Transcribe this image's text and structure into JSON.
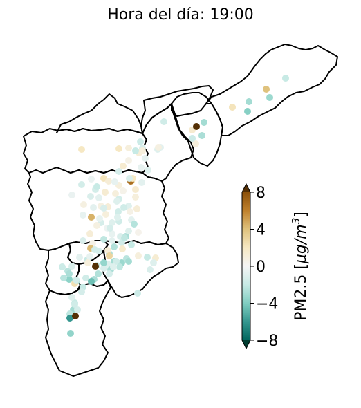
{
  "title": "Hora del día: 19:00",
  "colorbar": {
    "label": "PM2.5 [μg/m³]",
    "label_parts": [
      "PM2.5 [",
      "μg/m",
      "3",
      "]"
    ],
    "min": -8,
    "max": 8,
    "ticks": [
      8,
      4,
      0,
      -4,
      -8
    ],
    "tick_labels": [
      "8",
      "4",
      "0",
      "−4",
      "−8"
    ],
    "extend": "both",
    "colormap": "BrBG_r",
    "colors": [
      "#003c30",
      "#01665e",
      "#35978f",
      "#80cdc1",
      "#c7eae5",
      "#f5f5f5",
      "#f6e8c3",
      "#dfc27d",
      "#bf812d",
      "#8c510a",
      "#543005"
    ]
  },
  "map_data": {
    "regions": [
      "region-1",
      "region-2",
      "region-3",
      "region-4",
      "region-5",
      "region-6",
      "region-7",
      "region-8",
      "region-9",
      "region-10",
      "region-11"
    ],
    "points": [
      {
        "id": "p1",
        "value": 0.8
      },
      {
        "id": "p2",
        "value": 0.5
      },
      {
        "id": "p3",
        "value": -0.6
      },
      {
        "id": "p4",
        "value": -0.8
      },
      {
        "id": "p5",
        "value": 1.2
      },
      {
        "id": "p6",
        "value": 0.4
      },
      {
        "id": "p7",
        "value": -1.2
      },
      {
        "id": "p8",
        "value": 1.8
      },
      {
        "id": "p9",
        "value": 1.5
      },
      {
        "id": "p10",
        "value": -1.0
      },
      {
        "id": "p11",
        "value": 1.0
      },
      {
        "id": "p12",
        "value": 1.5
      },
      {
        "id": "p13",
        "value": -1.6
      },
      {
        "id": "p14",
        "value": -0.8
      },
      {
        "id": "p15",
        "value": -1.0
      },
      {
        "id": "p16",
        "value": 2.0
      },
      {
        "id": "p17",
        "value": -1.8
      },
      {
        "id": "p18",
        "value": -1.2
      },
      {
        "id": "p19",
        "value": -0.7
      },
      {
        "id": "p20",
        "value": 2.0
      },
      {
        "id": "p21",
        "value": 1.0
      },
      {
        "id": "p22",
        "value": 1.5
      },
      {
        "id": "p23",
        "value": 0.6
      },
      {
        "id": "p24",
        "value": -1.0
      },
      {
        "id": "p25",
        "value": 2.5
      },
      {
        "id": "p26",
        "value": -0.5
      },
      {
        "id": "p27",
        "value": -1.5
      },
      {
        "id": "p28",
        "value": 1.0
      },
      {
        "id": "p29",
        "value": -0.5
      },
      {
        "id": "p30",
        "value": 2.2
      },
      {
        "id": "p31",
        "value": 1.2
      },
      {
        "id": "p32",
        "value": 6.8
      },
      {
        "id": "p33",
        "value": -1.5
      },
      {
        "id": "p34",
        "value": 1.0
      },
      {
        "id": "p35",
        "value": -1.2
      },
      {
        "id": "p36",
        "value": -0.8
      },
      {
        "id": "p37",
        "value": 1.4
      },
      {
        "id": "p38",
        "value": 0.5
      },
      {
        "id": "p39",
        "value": 1.0
      },
      {
        "id": "p40",
        "value": -1.5
      },
      {
        "id": "p41",
        "value": -1.0
      },
      {
        "id": "p42",
        "value": 0.8
      },
      {
        "id": "p43",
        "value": -0.8
      },
      {
        "id": "p44",
        "value": 1.2
      },
      {
        "id": "p45",
        "value": -1.6
      },
      {
        "id": "p46",
        "value": 0.6
      },
      {
        "id": "p47",
        "value": 1.0
      },
      {
        "id": "p48",
        "value": -1.4
      },
      {
        "id": "p49",
        "value": -1.0
      },
      {
        "id": "p50",
        "value": -0.6
      },
      {
        "id": "p51",
        "value": -1.6
      },
      {
        "id": "p52",
        "value": -0.8
      },
      {
        "id": "p53",
        "value": -2.5
      },
      {
        "id": "p54",
        "value": 0.8
      },
      {
        "id": "p55",
        "value": -0.4
      },
      {
        "id": "p56",
        "value": -0.6
      },
      {
        "id": "p57",
        "value": -1.2
      },
      {
        "id": "p58",
        "value": -2.8
      },
      {
        "id": "p59",
        "value": -1.0
      },
      {
        "id": "p60",
        "value": 1.2
      },
      {
        "id": "p61",
        "value": -2.2
      },
      {
        "id": "p62",
        "value": -0.8
      },
      {
        "id": "p63",
        "value": -1.6
      },
      {
        "id": "p64",
        "value": 0.6
      },
      {
        "id": "p65",
        "value": -2.0
      },
      {
        "id": "p66",
        "value": -1.2
      },
      {
        "id": "p67",
        "value": -2.6
      },
      {
        "id": "p68",
        "value": -1.4
      },
      {
        "id": "p69",
        "value": -2.8
      },
      {
        "id": "p70",
        "value": -3.0
      },
      {
        "id": "p71",
        "value": 1.0
      },
      {
        "id": "p72",
        "value": -3.2
      },
      {
        "id": "p73",
        "value": -2.4
      },
      {
        "id": "p74",
        "value": -1.8
      },
      {
        "id": "p75",
        "value": -1.2
      },
      {
        "id": "p76",
        "value": 4.2
      },
      {
        "id": "p77",
        "value": -0.8
      },
      {
        "id": "p78",
        "value": -2.0
      },
      {
        "id": "p79",
        "value": -1.0
      },
      {
        "id": "p80",
        "value": -3.4
      },
      {
        "id": "p81",
        "value": -2.8
      },
      {
        "id": "p82",
        "value": -1.6
      },
      {
        "id": "p83",
        "value": -2.2
      },
      {
        "id": "p84",
        "value": -3.0
      },
      {
        "id": "p85",
        "value": -2.6
      },
      {
        "id": "p86",
        "value": -1.4
      },
      {
        "id": "p87",
        "value": -1.8
      },
      {
        "id": "p88",
        "value": -2.4
      },
      {
        "id": "p89",
        "value": 8.5
      },
      {
        "id": "p90",
        "value": -1.2
      },
      {
        "id": "p91",
        "value": -3.6
      },
      {
        "id": "p92",
        "value": -2.6
      },
      {
        "id": "p93",
        "value": -1.6
      },
      {
        "id": "p94",
        "value": -2.8
      },
      {
        "id": "p95",
        "value": -4.5
      },
      {
        "id": "p96",
        "value": -2.0
      },
      {
        "id": "p97",
        "value": -3.0
      },
      {
        "id": "p98",
        "value": -1.4
      },
      {
        "id": "p99",
        "value": -2.2
      },
      {
        "id": "p100",
        "value": -1.6
      },
      {
        "id": "p101",
        "value": -1.0
      },
      {
        "id": "p102",
        "value": -3.5
      },
      {
        "id": "p103",
        "value": -1.8
      },
      {
        "id": "p104",
        "value": -6.0
      },
      {
        "id": "p105",
        "value": 2.5
      },
      {
        "id": "p106",
        "value": -2.4
      },
      {
        "id": "p107",
        "value": -2.8
      },
      {
        "id": "p108",
        "value": -2.0
      },
      {
        "id": "p109",
        "value": -1.4
      },
      {
        "id": "p110",
        "value": 8.5
      },
      {
        "id": "p111",
        "value": -2.2
      },
      {
        "id": "p112",
        "value": -2.0
      },
      {
        "id": "p113",
        "value": 0.8
      },
      {
        "id": "p114",
        "value": 0.4
      },
      {
        "id": "p115",
        "value": -1.0
      },
      {
        "id": "p116",
        "value": 1.2
      },
      {
        "id": "p117",
        "value": -0.8
      },
      {
        "id": "p118",
        "value": -1.2
      },
      {
        "id": "p119",
        "value": 1.4
      },
      {
        "id": "p120",
        "value": -1.0
      },
      {
        "id": "p121",
        "value": -2.0
      },
      {
        "id": "p122",
        "value": 4.5
      },
      {
        "id": "p123",
        "value": 1.5
      },
      {
        "id": "p124",
        "value": 2.0
      },
      {
        "id": "p125",
        "value": 1.2
      },
      {
        "id": "p126",
        "value": 0.8
      },
      {
        "id": "p127",
        "value": -1.4
      },
      {
        "id": "p128",
        "value": -1.0
      },
      {
        "id": "p129",
        "value": -1.6
      },
      {
        "id": "p130",
        "value": -0.6
      },
      {
        "id": "p131",
        "value": -2.0
      },
      {
        "id": "p132",
        "value": 1.0
      },
      {
        "id": "p133",
        "value": -1.4
      },
      {
        "id": "p134",
        "value": -0.6
      },
      {
        "id": "p135",
        "value": -0.6
      },
      {
        "id": "p136",
        "value": -1.2
      },
      {
        "id": "p137",
        "value": 1.6
      },
      {
        "id": "p138",
        "value": 1.2
      },
      {
        "id": "p139",
        "value": 3.0
      },
      {
        "id": "p140",
        "value": -1.5
      },
      {
        "id": "p141",
        "value": 1.0
      },
      {
        "id": "p142",
        "value": -1.0
      },
      {
        "id": "p143",
        "value": -0.6
      },
      {
        "id": "p144",
        "value": -1.5
      },
      {
        "id": "p145",
        "value": -1.2
      },
      {
        "id": "p146",
        "value": 4.0
      },
      {
        "id": "p147",
        "value": -2.0
      },
      {
        "id": "p148",
        "value": -3.2
      },
      {
        "id": "p149",
        "value": -3.0
      },
      {
        "id": "p150",
        "value": 2.2
      },
      {
        "id": "p151",
        "value": -3.8
      },
      {
        "id": "p152",
        "value": -3.0
      },
      {
        "id": "p153",
        "value": 8.5
      },
      {
        "id": "p154",
        "value": -2.8
      },
      {
        "id": "p155",
        "value": -1.8
      }
    ]
  }
}
